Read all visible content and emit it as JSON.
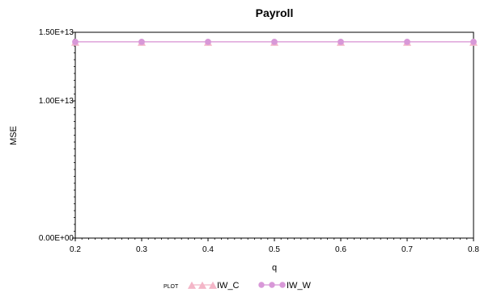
{
  "chart_data": {
    "type": "line",
    "title": "Payroll",
    "xlabel": "q",
    "ylabel": "MSE",
    "x": [
      0.2,
      0.3,
      0.4,
      0.5,
      0.6,
      0.7,
      0.8
    ],
    "x_tick_labels": [
      "0.2",
      "0.3",
      "0.4",
      "0.5",
      "0.6",
      "0.7",
      "0.8"
    ],
    "xlim": [
      0.2,
      0.8
    ],
    "y_ticks": [
      0,
      10000000000000,
      15000000000000
    ],
    "y_tick_labels": [
      "0.00E+00",
      "1.00E+13",
      "1.50E+13"
    ],
    "ylim": [
      0,
      15000000000000
    ],
    "grid": false,
    "legend_title": "PLOT",
    "legend_placement": "bottom",
    "series": [
      {
        "name": "IW_C",
        "marker": "triangle",
        "color": "#f4b6c8",
        "values": [
          14300000000000,
          14300000000000,
          14300000000000,
          14300000000000,
          14300000000000,
          14300000000000,
          14300000000000
        ]
      },
      {
        "name": "IW_W",
        "marker": "circle",
        "color": "#d898d8",
        "values": [
          14300000000000,
          14300000000000,
          14300000000000,
          14300000000000,
          14300000000000,
          14300000000000,
          14300000000000
        ]
      }
    ]
  }
}
